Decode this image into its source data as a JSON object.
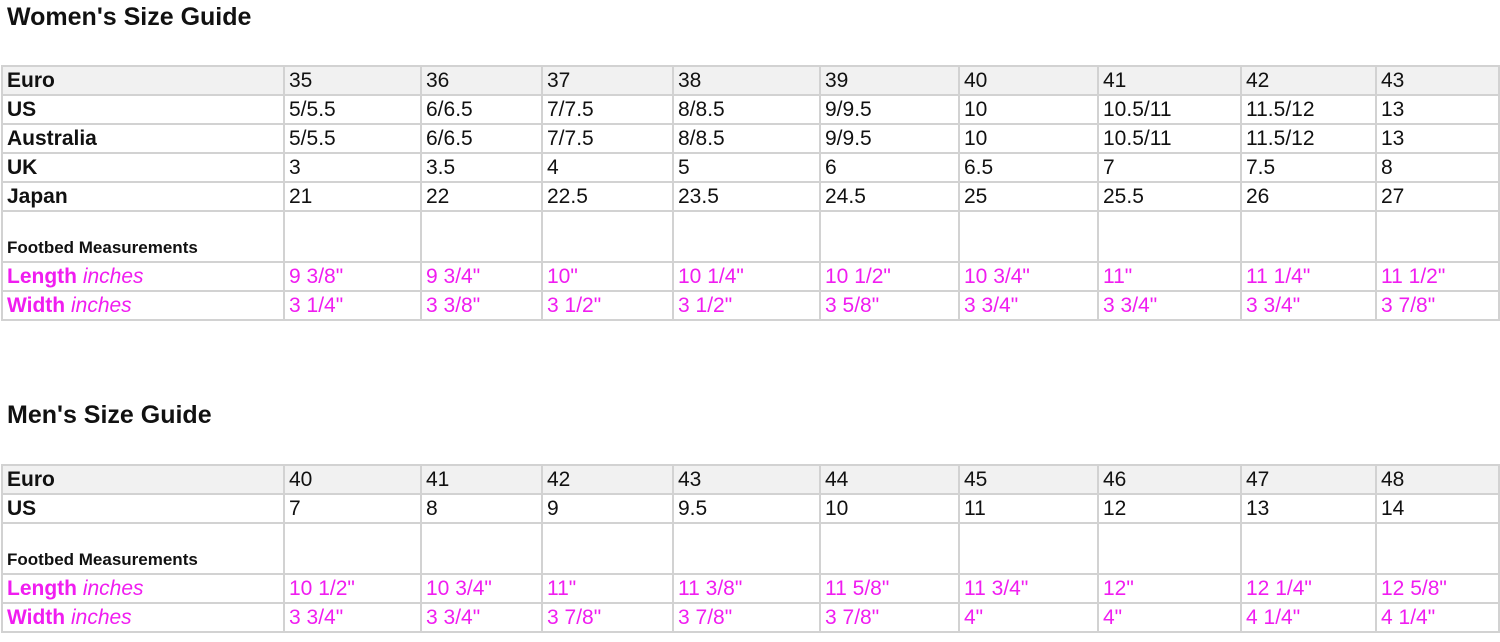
{
  "womens": {
    "title": "Women's Size Guide",
    "rows": [
      {
        "label": "Euro",
        "values": [
          "35",
          "36",
          "37",
          "38",
          "39",
          "40",
          "41",
          "42",
          "43"
        ]
      },
      {
        "label": "US",
        "values": [
          "5/5.5",
          "6/6.5",
          "7/7.5",
          "8/8.5",
          "9/9.5",
          "10",
          "10.5/11",
          "11.5/12",
          "13"
        ]
      },
      {
        "label": "Australia",
        "values": [
          "5/5.5",
          "6/6.5",
          "7/7.5",
          "8/8.5",
          "9/9.5",
          "10",
          "10.5/11",
          "11.5/12",
          "13"
        ]
      },
      {
        "label": "UK",
        "values": [
          "3",
          "3.5",
          "4",
          "5",
          "6",
          "6.5",
          "7",
          "7.5",
          "8"
        ]
      },
      {
        "label": "Japan",
        "values": [
          "21",
          "22",
          "22.5",
          "23.5",
          "24.5",
          "25",
          "25.5",
          "26",
          "27"
        ]
      }
    ],
    "footbed_label": "Footbed Measurements",
    "measure_rows": [
      {
        "label": "Length",
        "unit": "inches",
        "values": [
          "9 3/8\"",
          "9 3/4\"",
          "10\"",
          "10 1/4\"",
          "10 1/2\"",
          "10 3/4\"",
          "11\"",
          "11 1/4\"",
          "11 1/2\""
        ]
      },
      {
        "label": "Width",
        "unit": "inches",
        "values": [
          "3 1/4\"",
          "3 3/8\"",
          "3 1/2\"",
          "3 1/2\"",
          "3 5/8\"",
          "3 3/4\"",
          "3 3/4\"",
          "3 3/4\"",
          "3 7/8\""
        ]
      }
    ]
  },
  "mens": {
    "title": "Men's Size Guide",
    "rows": [
      {
        "label": "Euro",
        "values": [
          "40",
          "41",
          "42",
          "43",
          "44",
          "45",
          "46",
          "47",
          "48"
        ]
      },
      {
        "label": "US",
        "values": [
          "7",
          "8",
          "9",
          "9.5",
          "10",
          "11",
          "12",
          "13",
          "14"
        ]
      }
    ],
    "footbed_label": "Footbed Measurements",
    "measure_rows": [
      {
        "label": "Length",
        "unit": "inches",
        "values": [
          "10 1/2\"",
          "10 3/4\"",
          "11\"",
          "11 3/8\"",
          "11 5/8\"",
          "11 3/4\"",
          "12\"",
          "12 1/4\"",
          "12 5/8\""
        ]
      },
      {
        "label": "Width",
        "unit": "inches",
        "values": [
          "3 3/4\"",
          "3 3/4\"",
          "3 7/8\"",
          "3 7/8\"",
          "3 7/8\"",
          "4\"",
          "4\"",
          "4 1/4\"",
          "4 1/4\""
        ]
      }
    ]
  },
  "colors": {
    "measurement_text": "#f01df0",
    "header_row_bg": "#f1f1f1",
    "grid": "#d2d2d2"
  }
}
